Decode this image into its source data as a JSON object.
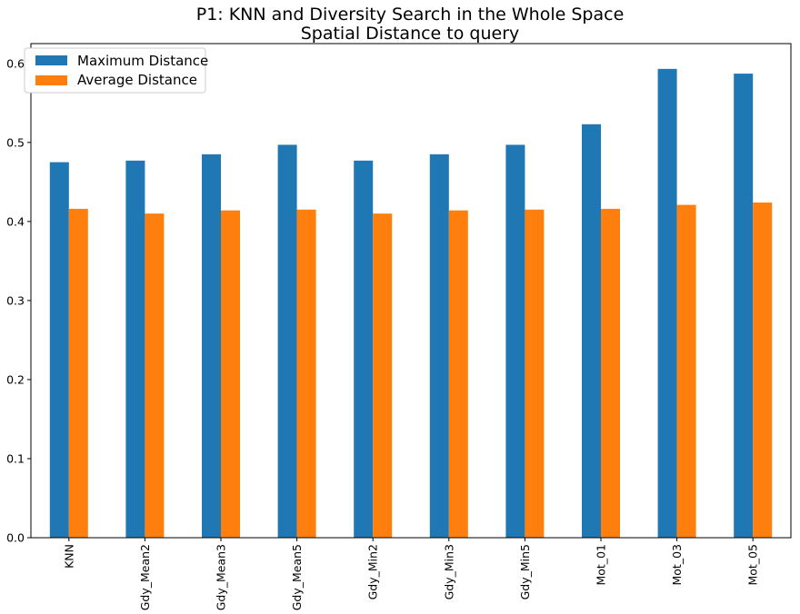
{
  "chart_data": {
    "type": "bar",
    "title": "P1: KNN and Diversity Search in the Whole Space",
    "subtitle": "Spatial Distance to query",
    "xlabel": "",
    "ylabel": "",
    "categories": [
      "KNN",
      "Gdy_Mean2",
      "Gdy_Mean3",
      "Gdy_Mean5",
      "Gdy_Min2",
      "Gdy_Min3",
      "Gdy_Min5",
      "Mot_01",
      "Mot_03",
      "Mot_05"
    ],
    "series": [
      {
        "name": "Maximum Distance",
        "color": "#1f77b4",
        "values": [
          0.475,
          0.477,
          0.485,
          0.497,
          0.477,
          0.485,
          0.497,
          0.523,
          0.593,
          0.587
        ]
      },
      {
        "name": "Average Distance",
        "color": "#ff7f0e",
        "values": [
          0.416,
          0.41,
          0.414,
          0.415,
          0.41,
          0.414,
          0.415,
          0.416,
          0.421,
          0.424
        ]
      }
    ],
    "ylim": [
      0,
      0.625
    ],
    "yticks": [
      "0.0",
      "0.1",
      "0.2",
      "0.3",
      "0.4",
      "0.5",
      "0.6"
    ],
    "grid": false,
    "legend_position": "top-left"
  }
}
